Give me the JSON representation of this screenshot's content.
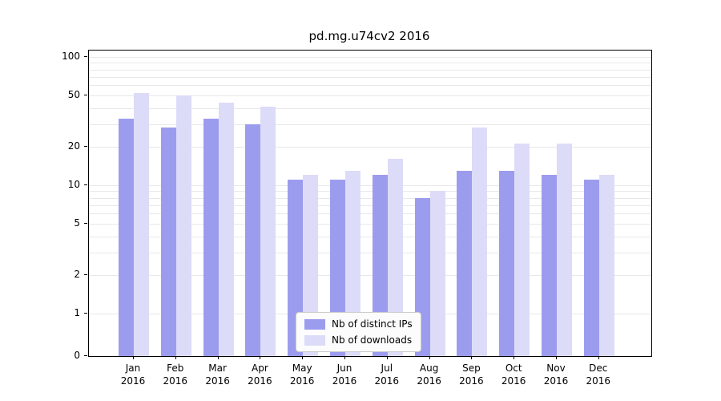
{
  "title": "pd.mg.u74cv2 2016",
  "colors": {
    "distinct_ips": "#9c9cef",
    "downloads": "#dcdcf8",
    "grid": "#e8e8e8",
    "axis": "#000000",
    "legend_border": "#cccccc",
    "legend_bg": "#fcfcfc"
  },
  "legend": {
    "items": [
      {
        "label": "Nb of distinct IPs",
        "series": "distinct_ips"
      },
      {
        "label": "Nb of downloads",
        "series": "downloads"
      }
    ]
  },
  "y_axis": {
    "scale": "symlog",
    "tick_values": [
      100,
      50,
      20,
      10,
      5,
      2,
      1,
      0
    ],
    "tick_labels": [
      "100",
      "50",
      "20",
      "10",
      "5",
      "2",
      "1",
      "0"
    ],
    "minor_gridline_values": [
      1,
      2,
      3,
      4,
      5,
      6,
      7,
      8,
      9,
      10,
      20,
      30,
      40,
      50,
      60,
      70,
      80,
      90,
      100
    ]
  },
  "x_axis": {
    "tick_labels": [
      "Jan\n2016",
      "Feb\n2016",
      "Mar\n2016",
      "Apr\n2016",
      "May\n2016",
      "Jun\n2016",
      "Jul\n2016",
      "Aug\n2016",
      "Sep\n2016",
      "Oct\n2016",
      "Nov\n2016",
      "Dec\n2016"
    ]
  },
  "chart_data": {
    "type": "bar",
    "title": "pd.mg.u74cv2 2016",
    "categories": [
      "Jan 2016",
      "Feb 2016",
      "Mar 2016",
      "Apr 2016",
      "May 2016",
      "Jun 2016",
      "Jul 2016",
      "Aug 2016",
      "Sep 2016",
      "Oct 2016",
      "Nov 2016",
      "Dec 2016"
    ],
    "series": [
      {
        "name": "Nb of distinct IPs",
        "key": "distinct_ips",
        "values": [
          33,
          28,
          33,
          30,
          11,
          11,
          12,
          8,
          13,
          13,
          12,
          11
        ]
      },
      {
        "name": "Nb of downloads",
        "key": "downloads",
        "values": [
          52,
          50,
          44,
          41,
          12,
          13,
          16,
          9,
          28,
          21,
          21,
          12
        ]
      }
    ],
    "yscale": "symlog",
    "ylim": [
      0,
      115
    ],
    "grid": true,
    "legend_position": "lower center"
  }
}
